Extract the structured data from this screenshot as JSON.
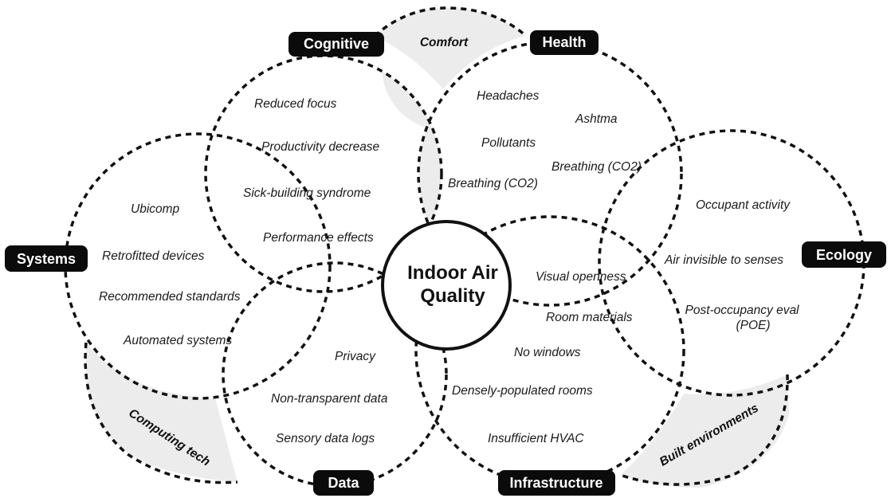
{
  "center": {
    "line1": "Indoor Air",
    "line2": "Quality"
  },
  "categories": {
    "cognitive": "Cognitive",
    "health": "Health",
    "systems": "Systems",
    "ecology": "Ecology",
    "data": "Data",
    "infrastructure": "Infrastructure"
  },
  "overlaps": {
    "comfort": "Comfort",
    "computing_tech": "Computing tech",
    "built_environments": "Built environments"
  },
  "items": {
    "cognitive": [
      "Reduced focus",
      "Productivity decrease",
      "Sick-building syndrome",
      "Performance effects"
    ],
    "health": [
      "Headaches",
      "Ashtma",
      "Pollutants",
      "Breathing (CO2)",
      "Breathing (CO2)"
    ],
    "systems": [
      "Ubicomp",
      "Retrofitted devices",
      "Recommended standards",
      "Automated systems"
    ],
    "ecology": [
      "Occupant activity",
      "Air invisible to senses",
      "Post-occupancy eval",
      "(POE)"
    ],
    "data": [
      "Privacy",
      "Non-transparent data",
      "Sensory data logs"
    ],
    "infrastructure": [
      "Visual openness",
      "Room materials",
      "No windows",
      "Densely-populated rooms",
      "Insufficient HVAC"
    ]
  }
}
